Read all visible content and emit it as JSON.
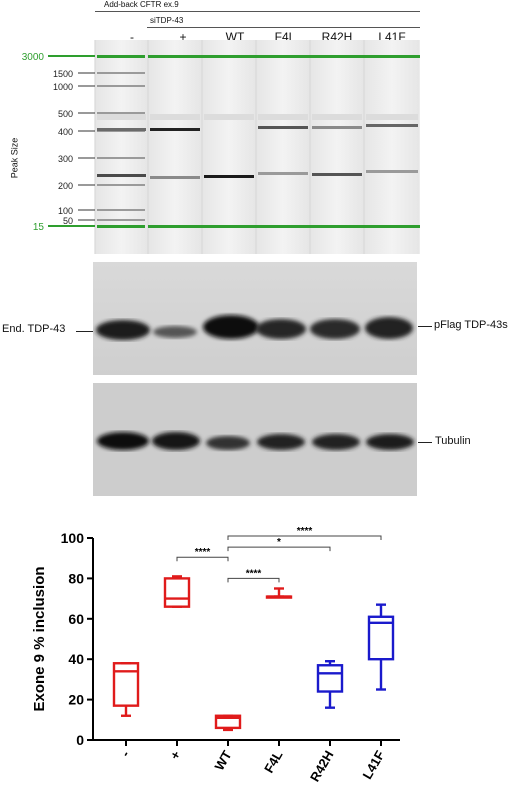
{
  "header": {
    "addback_label": "Add-back CFTR ex.9",
    "sitdp_label": "siTDP-43",
    "lanes": [
      "-",
      "+",
      "WT",
      "F4L",
      "R42H",
      "L41F"
    ]
  },
  "capillary": {
    "y_axis_label": "Peak Size",
    "size_markers": [
      "3000",
      "1500",
      "1000",
      "500",
      "400",
      "300",
      "200",
      "100",
      "50",
      "15"
    ],
    "marker_color": "#2e9e2e",
    "product_bands": [
      {
        "lane": "-",
        "bands": [
          "400",
          "200"
        ]
      },
      {
        "lane": "+",
        "bands": [
          "400",
          "200"
        ]
      },
      {
        "lane": "WT",
        "bands": [
          "200"
        ]
      },
      {
        "lane": "F4L",
        "bands": [
          "400",
          "200"
        ]
      },
      {
        "lane": "R42H",
        "bands": [
          "400",
          "200"
        ]
      },
      {
        "lane": "L41F",
        "bands": [
          "400",
          "200"
        ]
      }
    ]
  },
  "western_tdp": {
    "left_label": "End. TDP-43",
    "right_label": "pFlag TDP-43s"
  },
  "western_tubulin": {
    "right_label": "Tubulin"
  },
  "chart_data": {
    "type": "box",
    "ylabel": "Exone 9 % inclusion",
    "ylim": [
      0,
      100
    ],
    "yticks": [
      0,
      20,
      40,
      60,
      80,
      100
    ],
    "categories": [
      "-",
      "+",
      "WT",
      "F4L",
      "R42H",
      "L41F"
    ],
    "boxes": [
      {
        "category": "-",
        "min": 12,
        "q1": 17,
        "median": 34,
        "q3": 38,
        "max": 38,
        "color": "#e01b1b"
      },
      {
        "category": "+",
        "min": 66,
        "q1": 66,
        "median": 70,
        "q3": 80,
        "max": 81,
        "color": "#e01b1b"
      },
      {
        "category": "WT",
        "min": 5,
        "q1": 6,
        "median": 11,
        "q3": 12,
        "max": 12,
        "color": "#e01b1b"
      },
      {
        "category": "F4L",
        "min": 71,
        "q1": 71,
        "median": 71,
        "q3": 71,
        "max": 75,
        "color": "#e01b1b"
      },
      {
        "category": "R42H",
        "min": 16,
        "q1": 24,
        "median": 33,
        "q3": 37,
        "max": 39,
        "color": "#1a1acc"
      },
      {
        "category": "L41F",
        "min": 25,
        "q1": 40,
        "median": 58,
        "q3": 61,
        "max": 67,
        "color": "#1a1acc"
      }
    ],
    "significance": [
      {
        "from": "+",
        "to": "WT",
        "label": "****"
      },
      {
        "from": "WT",
        "to": "F4L",
        "label": "****"
      },
      {
        "from": "WT",
        "to": "R42H",
        "label": "*"
      },
      {
        "from": "WT",
        "to": "L41F",
        "label": "****"
      }
    ]
  }
}
